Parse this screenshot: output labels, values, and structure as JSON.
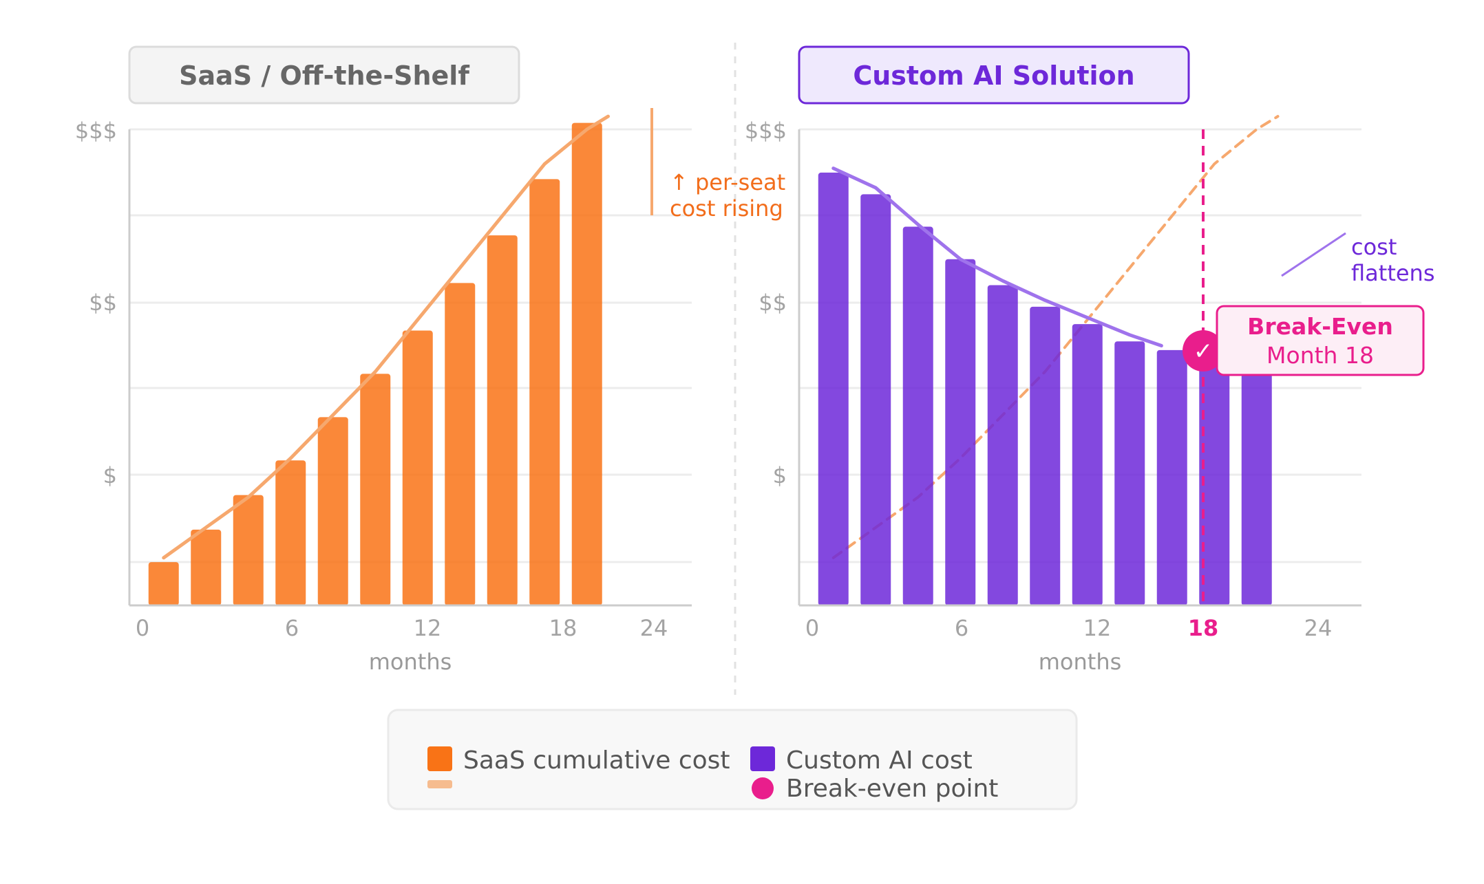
{
  "chart_data": [
    {
      "type": "bar",
      "title": "SaaS / Off-the-Shelf",
      "xlabel": "months",
      "ylabel": "",
      "x_ticks": [
        "0",
        "6",
        "12",
        "18",
        "24"
      ],
      "y_ticks": [
        "$",
        "$$",
        "$$$"
      ],
      "xlim": [
        0,
        24
      ],
      "ylim": [
        0,
        110
      ],
      "series": [
        {
          "name": "SaaS cumulative cost",
          "x": [
            1,
            3,
            5,
            7,
            9,
            11,
            13,
            15,
            17,
            19,
            21
          ],
          "values": [
            10,
            17.5,
            25.5,
            33.5,
            43.5,
            53.5,
            63.5,
            74.5,
            85.5,
            98.5,
            111.5
          ],
          "color": "#f97316"
        }
      ],
      "trend_line": {
        "x": [
          1,
          3,
          5,
          7,
          9,
          11,
          13,
          15,
          17,
          19,
          21,
          22
        ],
        "values": [
          11,
          18,
          25,
          34,
          44,
          54,
          66,
          78,
          90,
          102,
          110,
          113
        ],
        "color": "#f6a86e"
      },
      "annotation": [
        "↑ per-seat",
        "cost rising"
      ]
    },
    {
      "type": "bar",
      "title": "Custom AI Solution",
      "xlabel": "months",
      "ylabel": "",
      "x_ticks": [
        "0",
        "6",
        "12",
        "18",
        "24"
      ],
      "y_ticks": [
        "$",
        "$$",
        "$$$"
      ],
      "highlight_tick": "18",
      "xlim": [
        0,
        24
      ],
      "ylim": [
        0,
        110
      ],
      "series": [
        {
          "name": "Custom AI cost",
          "x": [
            1,
            3,
            5,
            7,
            9,
            11,
            13,
            15,
            17,
            19,
            21
          ],
          "values": [
            100,
            95,
            87.5,
            80,
            74,
            69,
            65,
            61,
            59,
            57,
            53.5
          ],
          "color": "#6d28d9"
        }
      ],
      "trend_line": {
        "x": [
          1,
          3,
          5,
          7,
          9,
          11,
          13,
          15,
          16.5
        ],
        "values": [
          101,
          96.5,
          88,
          80,
          75,
          70.5,
          66.5,
          62.5,
          60
        ],
        "color": "#9f73ec"
      },
      "saas_overlay_line": {
        "x": [
          1,
          3,
          5,
          7,
          9,
          11,
          13,
          15,
          17,
          19,
          21,
          22
        ],
        "values": [
          11,
          18,
          25,
          34,
          44,
          54,
          66,
          78,
          90,
          102,
          110,
          113
        ],
        "color": "#f6a86e"
      },
      "break_even": {
        "x": 17.5,
        "value": 59,
        "label": "Break-Even",
        "sublabel": "Month 18"
      },
      "annotation": [
        "cost",
        "flattens"
      ]
    }
  ],
  "legend": {
    "items": [
      {
        "label": "SaaS cumulative cost",
        "color": "#f97316",
        "swatch": "square"
      },
      {
        "label": "",
        "color": "#f6bc8f",
        "swatch": "line"
      },
      {
        "label": "Custom AI cost",
        "color": "#6d28d9",
        "swatch": "square"
      },
      {
        "label": "Break-even point",
        "color": "#e91e8c",
        "swatch": "circle"
      }
    ]
  },
  "colors": {
    "saas": "#f97316",
    "saas_line": "#f6a86e",
    "custom": "#6d28d9",
    "custom_line": "#9f73ec",
    "break_even": "#e91e8c",
    "grid": "#eeeeee",
    "axis": "#cccccc"
  },
  "icons": {
    "break_even_marker": "check-icon"
  }
}
